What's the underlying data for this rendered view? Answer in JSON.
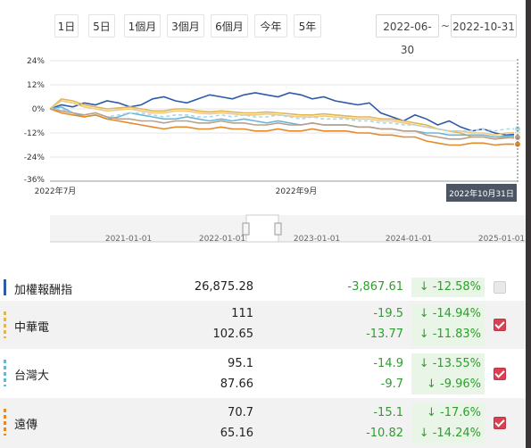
{
  "range_buttons": [
    "1日",
    "5日",
    "1個月",
    "3個月",
    "6個月",
    "今年",
    "5年"
  ],
  "date_range": {
    "start": "2022-06-30",
    "separator": "~",
    "end": "2022-10-31"
  },
  "chart_data": {
    "type": "line",
    "y_ticks": [
      "24%",
      "12%",
      "0%",
      "-12%",
      "-24%",
      "-36%"
    ],
    "ylim": [
      -36,
      24
    ],
    "x_labels": [
      "2022年7月",
      "2022年9月"
    ],
    "crosshair_label": "2022年10月31日",
    "navigator_labels": [
      "2021-01-01",
      "2022-01-01",
      "2023-01-01",
      "2024-01-01",
      "2025-01-01"
    ],
    "series": [
      {
        "color": "#2e5aa8",
        "dashed": false,
        "end": -12.58,
        "values": [
          0,
          2,
          1,
          3,
          2,
          4,
          3,
          1,
          2,
          5,
          6,
          4,
          3,
          5,
          7,
          6,
          5,
          7,
          8,
          7,
          6,
          8,
          7,
          5,
          6,
          4,
          3,
          2,
          3,
          -2,
          -4,
          -6,
          -3,
          -5,
          -8,
          -6,
          -9,
          -11,
          -10,
          -12,
          -13,
          -12.58
        ]
      },
      {
        "color": "#e0b552",
        "dashed": false,
        "end": -14.94,
        "values": [
          0,
          5,
          4,
          2,
          1,
          0,
          0.5,
          1,
          0,
          -1,
          -1,
          0,
          0,
          -1,
          -1.5,
          -1,
          -1.5,
          -2,
          -2,
          -1.5,
          -2,
          -2.5,
          -3,
          -3,
          -2.5,
          -3,
          -3.5,
          -4,
          -4,
          -5,
          -5,
          -6,
          -7,
          -8,
          -10,
          -11,
          -12,
          -14,
          -14,
          -15,
          -14,
          -14.94
        ]
      },
      {
        "color": "#f1c77a",
        "dashed": false,
        "end": -11.83,
        "values": [
          0,
          4,
          3,
          1,
          0,
          -1,
          -0.5,
          0,
          -1,
          -2,
          -2,
          -1,
          -1,
          -2,
          -2.5,
          -2,
          -2.5,
          -3,
          -3,
          -2.5,
          -3,
          -3.5,
          -4,
          -4,
          -3.5,
          -4,
          -4.5,
          -5,
          -5,
          -6,
          -6,
          -7,
          -8,
          -9,
          -10,
          -11,
          -11,
          -12,
          -12,
          -13,
          -12,
          -11.83
        ]
      },
      {
        "color": "#6bb6d8",
        "dashed": false,
        "end": -13.55,
        "values": [
          0,
          1,
          -2,
          -4,
          -3,
          -5,
          -4,
          -2,
          -3,
          -4,
          -5,
          -5,
          -4,
          -5,
          -6,
          -5,
          -6,
          -5,
          -6,
          -7,
          -6,
          -7,
          -8,
          -7,
          -8,
          -8,
          -8,
          -9,
          -9,
          -10,
          -10,
          -11,
          -11,
          -12,
          -12,
          -13,
          -13,
          -13,
          -13,
          -14,
          -13.5,
          -13.55
        ]
      },
      {
        "color": "#a9d8ec",
        "dashed": true,
        "end": -9.96,
        "values": [
          0,
          0,
          -2,
          -3,
          -2,
          -4,
          -3,
          -2,
          -2,
          -3,
          -4,
          -3,
          -3,
          -4,
          -4,
          -3,
          -4,
          -3,
          -4,
          -4,
          -3,
          -4,
          -5,
          -4,
          -5,
          -5,
          -5,
          -6,
          -6,
          -7,
          -7,
          -8,
          -8,
          -9,
          -10,
          -11,
          -11,
          -11,
          -10,
          -11,
          -10,
          -9.96
        ]
      },
      {
        "color": "#e58a2a",
        "dashed": false,
        "end": -17.6,
        "values": [
          0,
          -2,
          -3,
          -4,
          -3,
          -5,
          -6,
          -7,
          -8,
          -9,
          -10,
          -9,
          -9,
          -10,
          -10,
          -9,
          -10,
          -10,
          -11,
          -11,
          -10,
          -11,
          -11,
          -10,
          -11,
          -11,
          -11,
          -12,
          -12,
          -13,
          -13,
          -14,
          -14,
          -16,
          -17,
          -18,
          -18,
          -17,
          -17,
          -18,
          -17.5,
          -17.6
        ]
      },
      {
        "color": "#b8a08a",
        "dashed": false,
        "end": -14.24,
        "values": [
          0,
          -1,
          -2,
          -3,
          -2,
          -4,
          -5,
          -5,
          -6,
          -6,
          -7,
          -6,
          -6,
          -7,
          -7,
          -6,
          -7,
          -7,
          -8,
          -8,
          -7,
          -8,
          -8,
          -7,
          -8,
          -8,
          -8,
          -9,
          -9,
          -10,
          -10,
          -11,
          -11,
          -13,
          -14,
          -15,
          -15,
          -14,
          -14,
          -15,
          -14.5,
          -14.24
        ]
      }
    ]
  },
  "rows": [
    {
      "name": "加權報酬指",
      "marker": "#2e5aa8",
      "marker_style": "solid",
      "lines": [
        {
          "value": "26,875.28",
          "change": "-3,867.61",
          "pct": "-12.58%"
        }
      ],
      "checked": false
    },
    {
      "name": "中華電",
      "marker": "#e0b552",
      "marker_style": "dashed",
      "lines": [
        {
          "value": "111",
          "change": "-19.5",
          "pct": "-14.94%"
        },
        {
          "value": "102.65",
          "change": "-13.77",
          "pct": "-11.83%"
        }
      ],
      "checked": true
    },
    {
      "name": "台灣大",
      "marker": "#6bb6d8",
      "marker_style": "dashed",
      "lines": [
        {
          "value": "95.1",
          "change": "-14.9",
          "pct": "-13.55%"
        },
        {
          "value": "87.66",
          "change": "-9.7",
          "pct": "-9.96%"
        }
      ],
      "checked": true
    },
    {
      "name": "遠傳",
      "marker": "#e58a2a",
      "marker_style": "dashed",
      "lines": [
        {
          "value": "70.7",
          "change": "-15.1",
          "pct": "-17.6%"
        },
        {
          "value": "65.16",
          "change": "-10.82",
          "pct": "-14.24%"
        }
      ],
      "checked": true
    }
  ],
  "colors": {
    "up_down_green": "#2f9e2f",
    "checkbox_on": "#d94053",
    "crosshair_label_bg": "#4b5563"
  },
  "icons": {
    "arrow": "arrow-down-icon",
    "check": "checkmark-icon",
    "handle": "navigator-handle-icon"
  }
}
